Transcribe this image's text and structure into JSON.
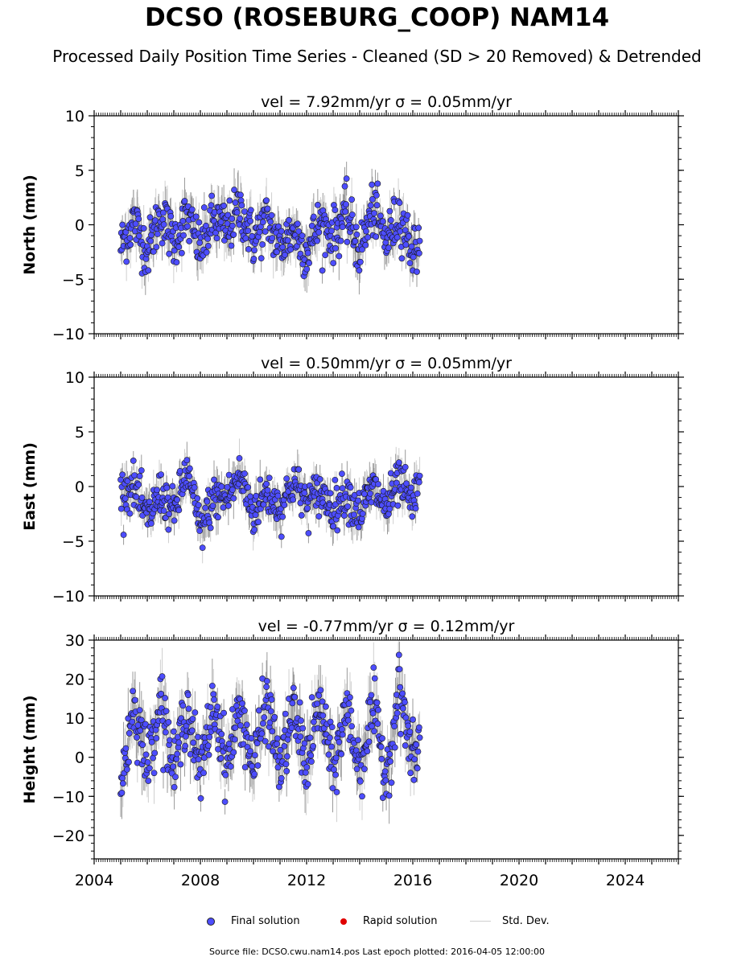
{
  "title": "DCSO (ROSEBURG_COOP) NAM14",
  "subtitle": "Processed Daily Position Time Series - Cleaned (SD > 20 Removed) & Detrended",
  "legend": {
    "final_label": "Final solution",
    "rapid_label": "Rapid solution",
    "std_label": "Std. Dev.",
    "final_color": "#4d4dff",
    "rapid_color": "#e00000",
    "std_color": "#cfcfcf"
  },
  "footer": "Source file: DCSO.cwu.nam14.pos  Last epoch plotted: 2016-04-05 12:00:00",
  "chart_data": [
    {
      "type": "scatter",
      "title": "vel = 7.92mm/yr   σ = 0.05mm/yr",
      "ylabel": "North (mm)",
      "xlim": [
        2004,
        2026
      ],
      "ylim": [
        -10,
        10
      ],
      "yticks": [
        "10",
        "5",
        "0",
        "−5",
        "−10"
      ],
      "ytick_values": [
        10,
        5,
        0,
        -5,
        -10
      ],
      "x_range": [
        2005.0,
        2016.26
      ],
      "series": [
        {
          "values_summary": "daily positions mostly between -4.5 and 3.5 mm",
          "x": [
            2005.0,
            2005.5,
            2006.0,
            2006.5,
            2007.0,
            2007.5,
            2008.0,
            2008.5,
            2009.0,
            2009.5,
            2010.0,
            2010.5,
            2011.0,
            2011.5,
            2012.0,
            2012.5,
            2013.0,
            2013.5,
            2014.0,
            2014.5,
            2015.0,
            2015.5,
            2016.0,
            2016.26
          ],
          "y": [
            -2.0,
            0.5,
            -2.5,
            1.0,
            -1.5,
            0.8,
            -2.2,
            0.5,
            -0.5,
            1.5,
            -1.5,
            0.5,
            -2.0,
            -0.5,
            -2.5,
            0.2,
            -1.0,
            1.0,
            -2.5,
            1.5,
            -1.5,
            1.0,
            -2.5,
            -1.5
          ]
        }
      ]
    },
    {
      "type": "scatter",
      "title": "vel = 0.50mm/yr   σ = 0.05mm/yr",
      "ylabel": "East (mm)",
      "xlim": [
        2004,
        2026
      ],
      "ylim": [
        -10,
        10
      ],
      "yticks": [
        "10",
        "5",
        "0",
        "−5",
        "−10"
      ],
      "ytick_values": [
        10,
        5,
        0,
        -5,
        -10
      ],
      "x_range": [
        2005.0,
        2016.26
      ],
      "series": [
        {
          "x": [
            2005.0,
            2005.5,
            2006.0,
            2006.5,
            2007.0,
            2007.5,
            2008.0,
            2008.5,
            2009.0,
            2009.5,
            2010.0,
            2010.5,
            2011.0,
            2011.5,
            2012.0,
            2012.5,
            2013.0,
            2013.5,
            2014.0,
            2014.5,
            2015.0,
            2015.5,
            2016.0,
            2016.26
          ],
          "y": [
            -0.5,
            0.0,
            -3.0,
            -0.5,
            -2.5,
            1.5,
            -4.0,
            -1.0,
            -1.0,
            1.0,
            -2.5,
            -0.5,
            -2.0,
            0.5,
            -1.5,
            -0.5,
            -2.0,
            -0.5,
            -2.5,
            0.0,
            -2.0,
            0.5,
            -2.0,
            1.0
          ]
        }
      ]
    },
    {
      "type": "scatter",
      "title": "vel = -0.77mm/yr   σ = 0.12mm/yr",
      "ylabel": "Height (mm)",
      "xlim": [
        2004,
        2026
      ],
      "ylim": [
        -26,
        30
      ],
      "yticks": [
        "30",
        "20",
        "10",
        "0",
        "−10",
        "−20"
      ],
      "ytick_values": [
        30,
        20,
        10,
        0,
        -10,
        -20
      ],
      "xticks": [
        "2004",
        "2008",
        "2012",
        "2016",
        "2020",
        "2024"
      ],
      "xtick_values": [
        2004,
        2008,
        2012,
        2016,
        2020,
        2024
      ],
      "x_range": [
        2005.0,
        2016.26
      ],
      "series": [
        {
          "x": [
            2005.0,
            2005.5,
            2006.0,
            2006.5,
            2007.0,
            2007.5,
            2008.0,
            2008.5,
            2009.0,
            2009.5,
            2010.0,
            2010.5,
            2011.0,
            2011.5,
            2012.0,
            2012.5,
            2013.0,
            2013.5,
            2014.0,
            2014.5,
            2015.0,
            2015.5,
            2016.0,
            2016.26
          ],
          "y": [
            -8.0,
            14.0,
            -2.0,
            16.0,
            -4.0,
            14.0,
            -5.0,
            14.0,
            -2.0,
            13.0,
            -3.0,
            15.0,
            -3.0,
            12.0,
            -2.0,
            14.0,
            -4.0,
            13.0,
            -3.0,
            13.0,
            -5.0,
            18.0,
            -2.0,
            5.0
          ]
        }
      ]
    }
  ]
}
